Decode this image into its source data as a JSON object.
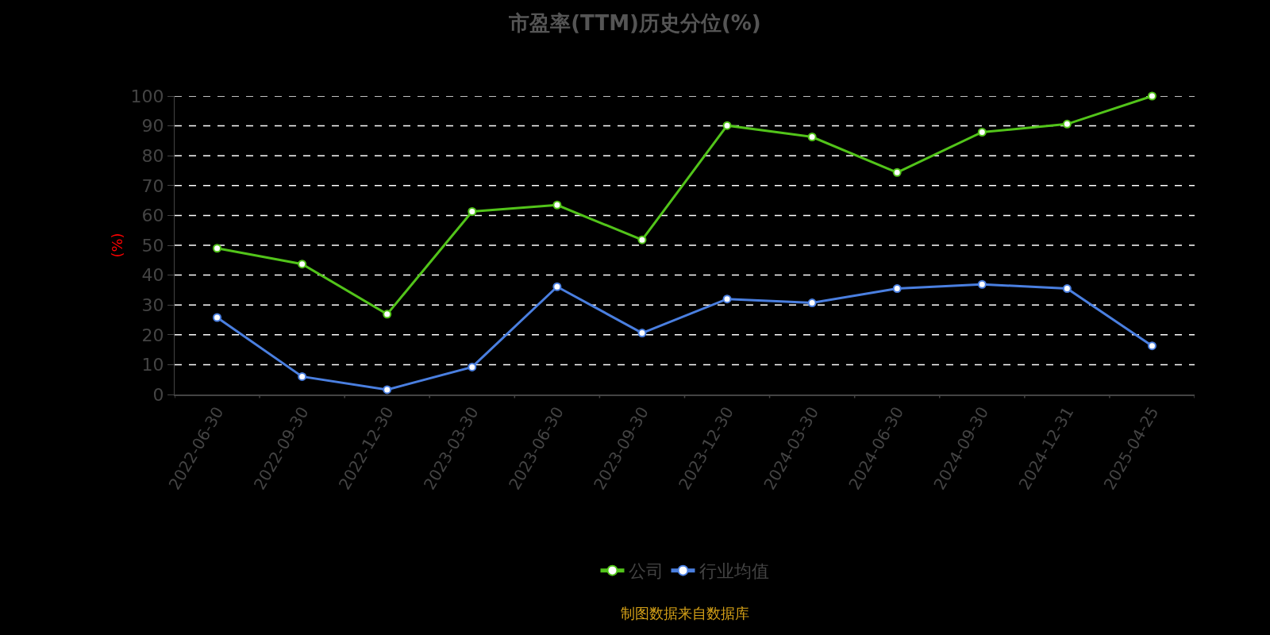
{
  "chart_data": {
    "type": "line",
    "title": "市盈率(TTM)历史分位(%)",
    "ylabel": "(%)",
    "categories": [
      "2022-06-30",
      "2022-09-30",
      "2022-12-30",
      "2023-03-30",
      "2023-06-30",
      "2023-09-30",
      "2023-12-30",
      "2024-03-30",
      "2024-06-30",
      "2024-09-30",
      "2024-12-31",
      "2025-04-25"
    ],
    "series": [
      {
        "name": "公司",
        "color": "#52c41a",
        "values": [
          49.0,
          43.7,
          26.9,
          61.3,
          63.5,
          51.8,
          90.1,
          86.3,
          74.4,
          87.9,
          90.6,
          100
        ]
      },
      {
        "name": "行业均值",
        "color": "#4a7fe0",
        "values": [
          25.8,
          6.0,
          1.6,
          9.2,
          36.1,
          20.6,
          32.0,
          30.7,
          35.5,
          36.9,
          35.5,
          16.3
        ]
      }
    ],
    "ylim": [
      0,
      100
    ],
    "yticks": [
      0,
      10,
      20,
      30,
      40,
      50,
      60,
      70,
      80,
      90,
      100
    ],
    "grid": "y",
    "legend": "bottom",
    "marker": "circle",
    "line_style": "solid",
    "annotations": [
      "制图数据来自数据库"
    ]
  }
}
